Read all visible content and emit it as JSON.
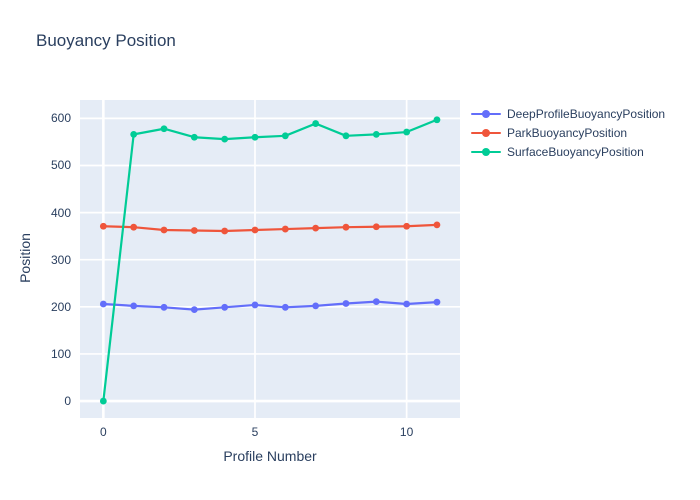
{
  "title": "Buoyancy Position",
  "colors": {
    "text": "#2a3f5f",
    "plot_background": "#e5ecf6",
    "grid": "#ffffff",
    "paper_background": "#ffffff",
    "series_blue": "#636efa",
    "series_red": "#ef553b",
    "series_green": "#00cc96"
  },
  "chart_data": {
    "type": "line",
    "title": "Buoyancy Position",
    "xlabel": "Profile Number",
    "ylabel": "Position",
    "mode": "lines+markers",
    "grid": true,
    "legend_position": "right",
    "x": [
      0,
      1,
      2,
      3,
      4,
      5,
      6,
      7,
      8,
      9,
      10,
      11
    ],
    "series": [
      {
        "name": "DeepProfileBuoyancyPosition",
        "color": "#636efa",
        "values": [
          206,
          202,
          199,
          194,
          199,
          204,
          199,
          202,
          207,
          211,
          206,
          210
        ]
      },
      {
        "name": "ParkBuoyancyPosition",
        "color": "#ef553b",
        "values": [
          371,
          369,
          363,
          362,
          361,
          363,
          365,
          367,
          369,
          370,
          371,
          374
        ]
      },
      {
        "name": "SurfaceBuoyancyPosition",
        "color": "#00cc96",
        "values": [
          0,
          566,
          578,
          560,
          556,
          560,
          563,
          589,
          563,
          566,
          571,
          597
        ]
      }
    ],
    "xticks": [
      0,
      5,
      10
    ],
    "yticks": [
      0,
      100,
      200,
      300,
      400,
      500,
      600
    ],
    "xlim": [
      -0.77,
      11.76
    ],
    "ylim": [
      -36,
      639
    ]
  }
}
